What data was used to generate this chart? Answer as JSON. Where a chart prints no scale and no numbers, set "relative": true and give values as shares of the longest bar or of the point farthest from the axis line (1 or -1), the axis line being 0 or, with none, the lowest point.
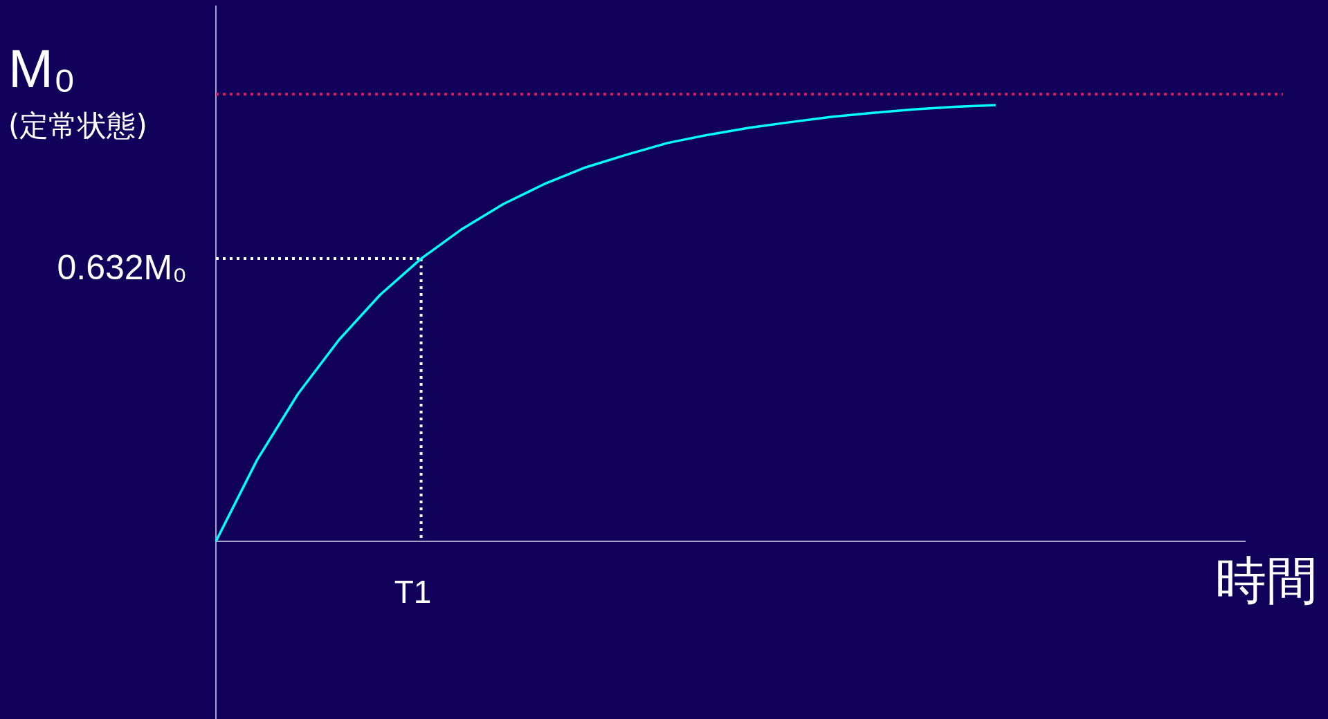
{
  "chart_data": {
    "type": "line",
    "relative": true,
    "xlabel": "時間",
    "annotations": [
      "(定常状態)",
      "T1"
    ],
    "categories": [
      null,
      null,
      null,
      null,
      null,
      null,
      null,
      null,
      null,
      null,
      null,
      null,
      null,
      null,
      null,
      null,
      null,
      null,
      null,
      null,
      null,
      null,
      null,
      null,
      null,
      null,
      null
    ],
    "ref_lines": [
      {
        "axis": "y",
        "value": 1.025,
        "label": "M₀",
        "color": "#d81b60",
        "line_style": "dotted"
      },
      {
        "axis": "y",
        "value": 0.648,
        "label": "0.632M₀",
        "color": "#ffffff",
        "line_style": "dotted"
      }
    ],
    "series": [
      {
        "color": "#00ffff",
        "line_style": "solid",
        "values": [
          0,
          0.186,
          0.338,
          0.462,
          0.565,
          0.648,
          0.716,
          0.773,
          0.819,
          0.857,
          0.886,
          0.913,
          0.932,
          0.948,
          0.961,
          0.973,
          0.982,
          0.99,
          0.996,
          1,
          null,
          null,
          null,
          null,
          null,
          null,
          null
        ]
      }
    ]
  }
}
